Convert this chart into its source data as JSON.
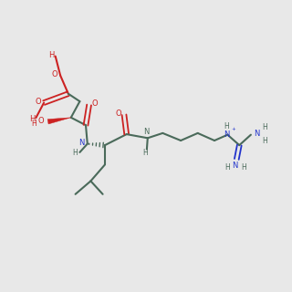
{
  "bg_color": "#e8e8e8",
  "bond_color": "#4a6a5a",
  "red_color": "#cc2222",
  "blue_color": "#2233cc",
  "font_size": 7.0,
  "font_size_small": 6.0,
  "lw": 1.5,
  "lw_thin": 1.2
}
